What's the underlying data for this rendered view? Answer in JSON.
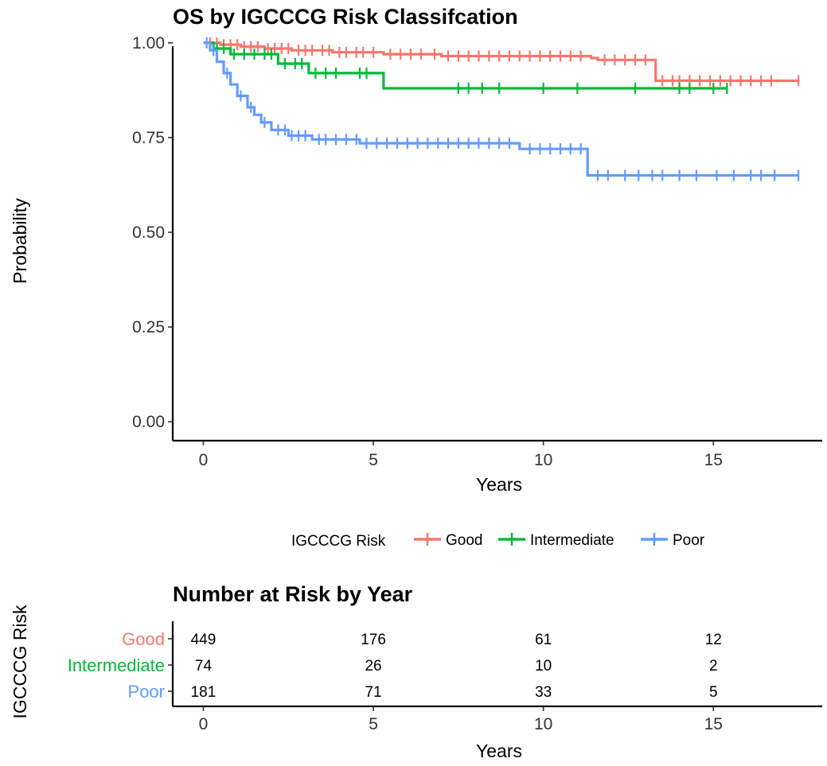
{
  "chart_data": [
    {
      "type": "line",
      "subtype": "kaplan-meier",
      "title": "OS by IGCCCG Risk Classifcation",
      "xlabel": "Years",
      "ylabel": "Probability",
      "xlim": [
        -0.9,
        18.2
      ],
      "ylim": [
        -0.05,
        1.05
      ],
      "xticks": [
        0,
        5,
        10,
        15
      ],
      "yticks": [
        0.0,
        0.25,
        0.5,
        0.75,
        1.0
      ],
      "ytick_labels": [
        "0.00",
        "0.25",
        "0.50",
        "0.75",
        "1.00"
      ],
      "grid": false,
      "legend": {
        "title": "IGCCCG Risk",
        "position": "bottom",
        "entries": [
          "Good",
          "Intermediate",
          "Poor"
        ]
      },
      "series": [
        {
          "name": "Good",
          "color": "#F8766D",
          "steps": [
            [
              0,
              1.0
            ],
            [
              0.5,
              0.995
            ],
            [
              1.1,
              0.99
            ],
            [
              1.8,
              0.985
            ],
            [
              2.6,
              0.98
            ],
            [
              3.8,
              0.975
            ],
            [
              5.3,
              0.97
            ],
            [
              7.0,
              0.965
            ],
            [
              11.4,
              0.96
            ],
            [
              11.6,
              0.955
            ],
            [
              13.3,
              0.9
            ],
            [
              17.5,
              0.9
            ]
          ],
          "censor_x": [
            0.2,
            0.4,
            0.6,
            0.8,
            1.0,
            1.2,
            1.4,
            1.6,
            1.9,
            2.1,
            2.3,
            2.5,
            2.8,
            3.0,
            3.2,
            3.5,
            3.7,
            4.0,
            4.2,
            4.5,
            4.7,
            5.0,
            5.5,
            5.8,
            6.1,
            6.4,
            6.8,
            7.2,
            7.5,
            7.8,
            8.1,
            8.4,
            8.7,
            9.0,
            9.3,
            9.6,
            9.9,
            10.2,
            10.5,
            10.8,
            11.1,
            11.8,
            12.1,
            12.4,
            12.7,
            13.0,
            13.5,
            13.8,
            14.0,
            14.3,
            14.6,
            14.9,
            15.2,
            15.5,
            15.8,
            16.1,
            16.4,
            16.7,
            17.5
          ]
        },
        {
          "name": "Intermediate",
          "color": "#00BA38",
          "steps": [
            [
              0,
              1.0
            ],
            [
              0.3,
              0.985
            ],
            [
              0.8,
              0.97
            ],
            [
              2.2,
              0.945
            ],
            [
              3.1,
              0.92
            ],
            [
              5.3,
              0.88
            ],
            [
              15.4,
              0.88
            ]
          ],
          "censor_x": [
            0.4,
            0.6,
            0.9,
            1.2,
            1.5,
            1.8,
            2.0,
            2.4,
            2.7,
            2.9,
            3.3,
            3.6,
            3.9,
            4.6,
            4.8,
            7.5,
            7.8,
            8.2,
            8.7,
            10.0,
            11.0,
            12.7,
            14.0,
            14.3,
            15.0,
            15.4
          ]
        },
        {
          "name": "Poor",
          "color": "#619CFF",
          "steps": [
            [
              0,
              1.0
            ],
            [
              0.2,
              0.98
            ],
            [
              0.4,
              0.95
            ],
            [
              0.6,
              0.92
            ],
            [
              0.8,
              0.89
            ],
            [
              1.0,
              0.86
            ],
            [
              1.3,
              0.83
            ],
            [
              1.5,
              0.81
            ],
            [
              1.7,
              0.79
            ],
            [
              2.0,
              0.77
            ],
            [
              2.5,
              0.755
            ],
            [
              3.2,
              0.745
            ],
            [
              4.6,
              0.735
            ],
            [
              9.3,
              0.72
            ],
            [
              11.3,
              0.65
            ],
            [
              17.5,
              0.65
            ]
          ],
          "censor_x": [
            0.1,
            0.3,
            0.7,
            1.1,
            1.4,
            1.8,
            2.2,
            2.4,
            2.6,
            2.8,
            3.0,
            3.4,
            3.6,
            3.9,
            4.2,
            4.5,
            4.8,
            5.1,
            5.4,
            5.7,
            6.0,
            6.3,
            6.6,
            6.9,
            7.2,
            7.5,
            7.8,
            8.1,
            8.4,
            8.7,
            9.0,
            9.6,
            9.9,
            10.2,
            10.5,
            10.8,
            11.1,
            11.6,
            11.9,
            12.4,
            12.8,
            13.2,
            13.5,
            14.0,
            14.5,
            15.1,
            15.6,
            16.1,
            16.4,
            16.8,
            17.5
          ]
        }
      ]
    },
    {
      "type": "table",
      "title": "Number at Risk by Year",
      "xlabel": "Years",
      "ylabel": "IGCCCG Risk",
      "xlim": [
        -0.9,
        18.2
      ],
      "xticks": [
        0,
        5,
        10,
        15
      ],
      "columns": [
        0,
        5,
        10,
        15
      ],
      "rows": [
        {
          "name": "Good",
          "color": "#F8766D",
          "values": [
            "449",
            "176",
            "61",
            "12"
          ]
        },
        {
          "name": "Intermediate",
          "color": "#00BA38",
          "values": [
            "74",
            "26",
            "10",
            "2"
          ]
        },
        {
          "name": "Poor",
          "color": "#619CFF",
          "values": [
            "181",
            "71",
            "33",
            "5"
          ]
        }
      ]
    }
  ]
}
